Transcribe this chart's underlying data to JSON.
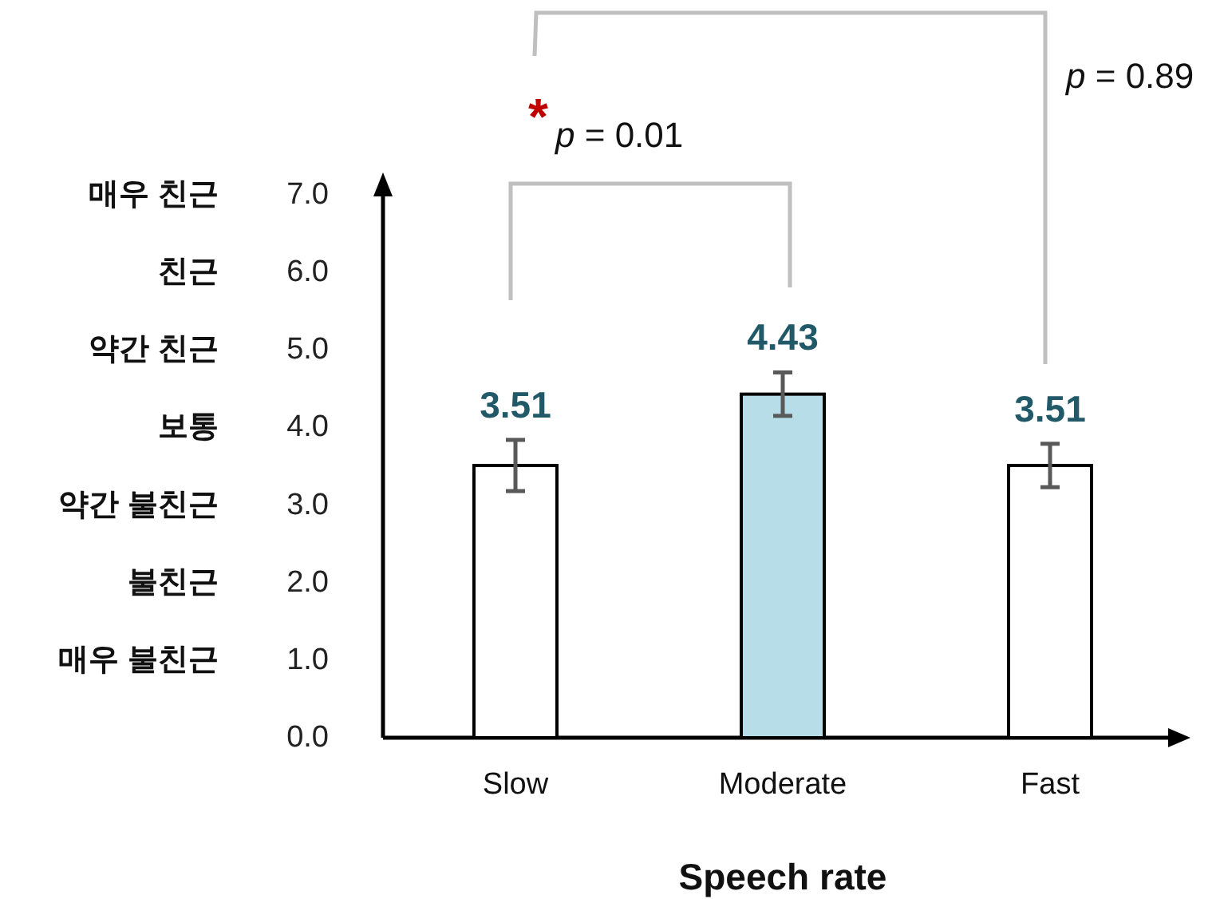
{
  "chart_data": {
    "type": "bar",
    "xlabel": "Speech rate",
    "categories": [
      "Slow",
      "Moderate",
      "Fast"
    ],
    "values": [
      3.51,
      4.43,
      3.51
    ],
    "colors": [
      "#ffffff",
      "#b7dde8",
      "#ffffff"
    ],
    "errors": [
      0.33,
      0.28,
      0.28
    ],
    "data_labels": true,
    "ylim": [
      0,
      7
    ],
    "yticks": [
      {
        "value": 0,
        "label": "0.0"
      },
      {
        "value": 1,
        "label": "1.0"
      },
      {
        "value": 2,
        "label": "2.0"
      },
      {
        "value": 3,
        "label": "3.0"
      },
      {
        "value": 4,
        "label": "4.0"
      },
      {
        "value": 5,
        "label": "5.0"
      },
      {
        "value": 6,
        "label": "6.0"
      },
      {
        "value": 7,
        "label": "7.0"
      }
    ],
    "annotations": [
      "*",
      "p = 0.01",
      "p = 0.89",
      "매우 불친근",
      "불친근",
      "약간 불친근",
      "보통",
      "약간 친근",
      "친근",
      "매우 친근"
    ]
  }
}
